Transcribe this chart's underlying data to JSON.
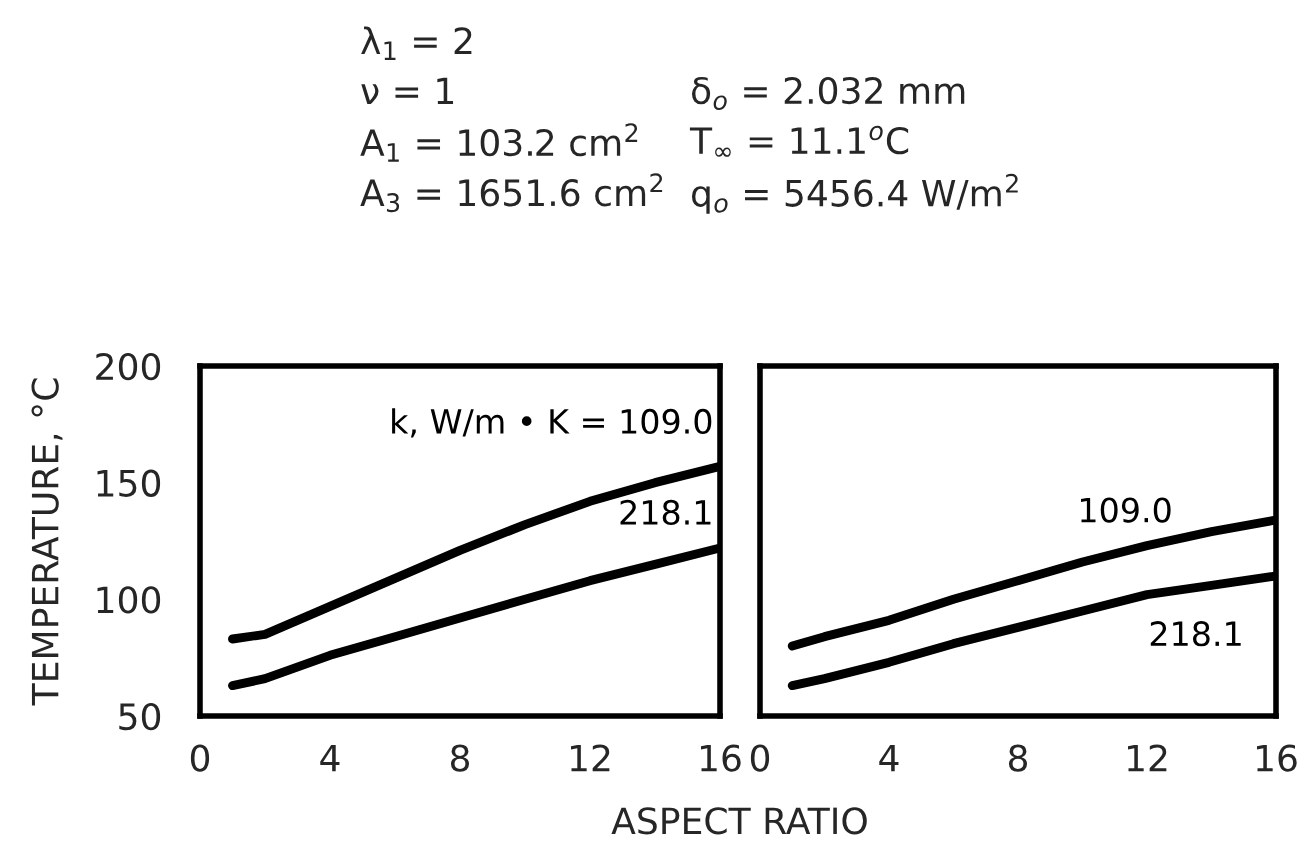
{
  "chart_data": [
    {
      "type": "line",
      "xlabel": "ASPECT RATIO",
      "ylabel": "TEMPERATURE, °C",
      "xlim": [
        0,
        16
      ],
      "xticks": [
        0,
        4,
        8,
        12,
        16
      ],
      "ylim": [
        50,
        200
      ],
      "yticks": [
        50,
        100,
        150,
        200
      ],
      "grid": false,
      "legend": false,
      "marker": "none",
      "line_style": "solid",
      "annotations": [
        "λ$_{1}$ = 2",
        "ν = 1",
        "A$_{1}$ = 103.2 cm$^{2}$",
        "A$_{3}$ = 1651.6 cm$^{2}$",
        "δ$_{o}$ = 2.032 mm",
        "T$_{∞}$ = 11.1$^{o}$C",
        "q$_{o}$ = 5456.4 W/m$^{2}$"
      ],
      "x": [
        1,
        2,
        4,
        6,
        8,
        10,
        12,
        14,
        16
      ],
      "series": [
        {
          "name": "k, W/m • K = 109.0",
          "color": "#000000",
          "values": [
            83,
            85,
            97,
            109,
            121,
            132,
            142,
            150,
            157
          ]
        },
        {
          "name": "218.1",
          "color": "#000000",
          "values": [
            63,
            66,
            76,
            84,
            92,
            100,
            108,
            115,
            122
          ]
        }
      ]
    },
    {
      "type": "line",
      "xlim": [
        0,
        16
      ],
      "xticks": [
        0,
        4,
        8,
        12,
        16
      ],
      "ylim": [
        50,
        200
      ],
      "tick_labels": "x",
      "grid": false,
      "legend": false,
      "marker": "none",
      "line_style": "solid",
      "x": [
        1,
        2,
        4,
        6,
        8,
        10,
        12,
        14,
        16
      ],
      "series": [
        {
          "name": "109.0",
          "color": "#000000",
          "values": [
            80,
            84,
            91,
            100,
            108,
            116,
            123,
            129,
            134
          ]
        },
        {
          "name": "218.1",
          "color": "#000000",
          "values": [
            63,
            66,
            73,
            81,
            88,
            95,
            102,
            106,
            110
          ]
        }
      ]
    }
  ]
}
